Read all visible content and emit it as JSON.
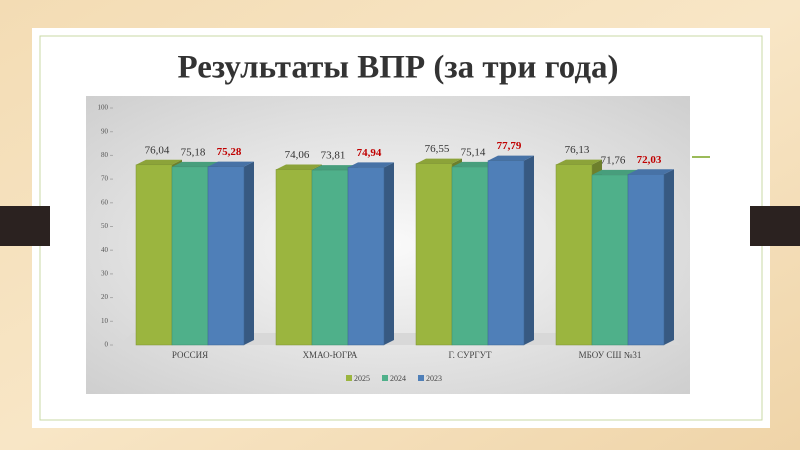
{
  "chart_data": {
    "type": "bar3d",
    "title": "Результаты ВПР (за три года)",
    "categories": [
      "РОССИЯ",
      "ХМАО-ЮГРА",
      "Г. СУРГУТ",
      "МБОУ СШ №31"
    ],
    "series": [
      {
        "name": "2025",
        "color": "#9bb53f",
        "label_color": "#333333",
        "values": [
          76.04,
          74.06,
          76.55,
          76.13
        ],
        "value_labels": [
          "76,04",
          "74,06",
          "76,55",
          "76,13"
        ]
      },
      {
        "name": "2024",
        "color": "#4fb08a",
        "label_color": "#333333",
        "values": [
          75.18,
          73.81,
          75.14,
          71.76
        ],
        "value_labels": [
          "75,18",
          "73,81",
          "75,14",
          "71,76"
        ]
      },
      {
        "name": "2023",
        "color": "#4f7fb8",
        "label_color": "#c00000",
        "values": [
          75.28,
          74.94,
          77.79,
          72.03
        ],
        "value_labels": [
          "75,28",
          "74,94",
          "77,79",
          "72,03"
        ]
      }
    ],
    "ylim": [
      0,
      100
    ],
    "yticks": [
      0,
      10,
      20,
      30,
      40,
      50,
      60,
      70,
      80,
      90,
      100
    ],
    "grid": false
  }
}
